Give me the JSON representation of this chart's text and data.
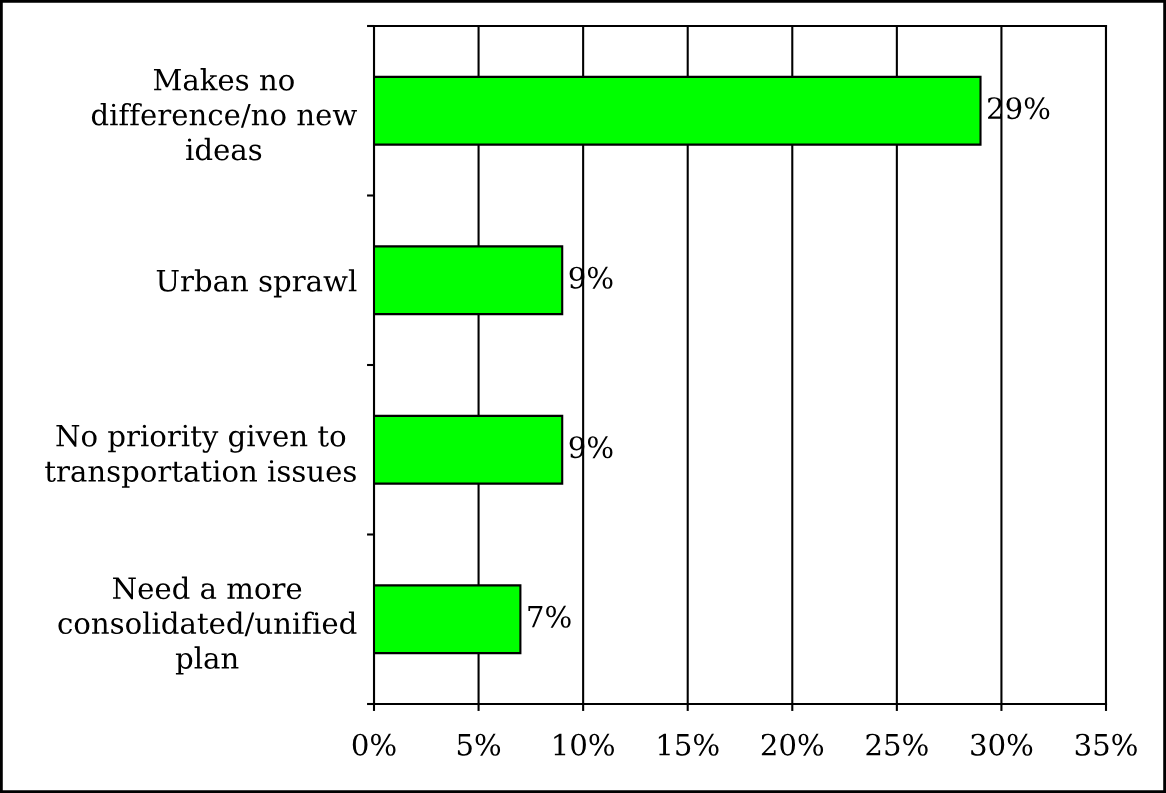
{
  "chart_data": {
    "type": "bar",
    "orientation": "horizontal",
    "categories": [
      "Makes no\ndifference/no new\nideas",
      "Urban sprawl",
      "No priority given to\ntransportation issues",
      "Need a more\nconsolidated/unified\nplan"
    ],
    "values": [
      29,
      9,
      9,
      7
    ],
    "color": "#00ff00",
    "value_labels": [
      "29%",
      "9%",
      "9%",
      "7%"
    ],
    "xlim": [
      0,
      35
    ],
    "xticks": [
      {
        "value": 0,
        "label": "0%"
      },
      {
        "value": 5,
        "label": "5%"
      },
      {
        "value": 10,
        "label": "10%"
      },
      {
        "value": 15,
        "label": "15%"
      },
      {
        "value": 20,
        "label": "20%"
      },
      {
        "value": 25,
        "label": "25%"
      },
      {
        "value": 30,
        "label": "30%"
      },
      {
        "value": 35,
        "label": "35%"
      }
    ],
    "grid": "x"
  }
}
